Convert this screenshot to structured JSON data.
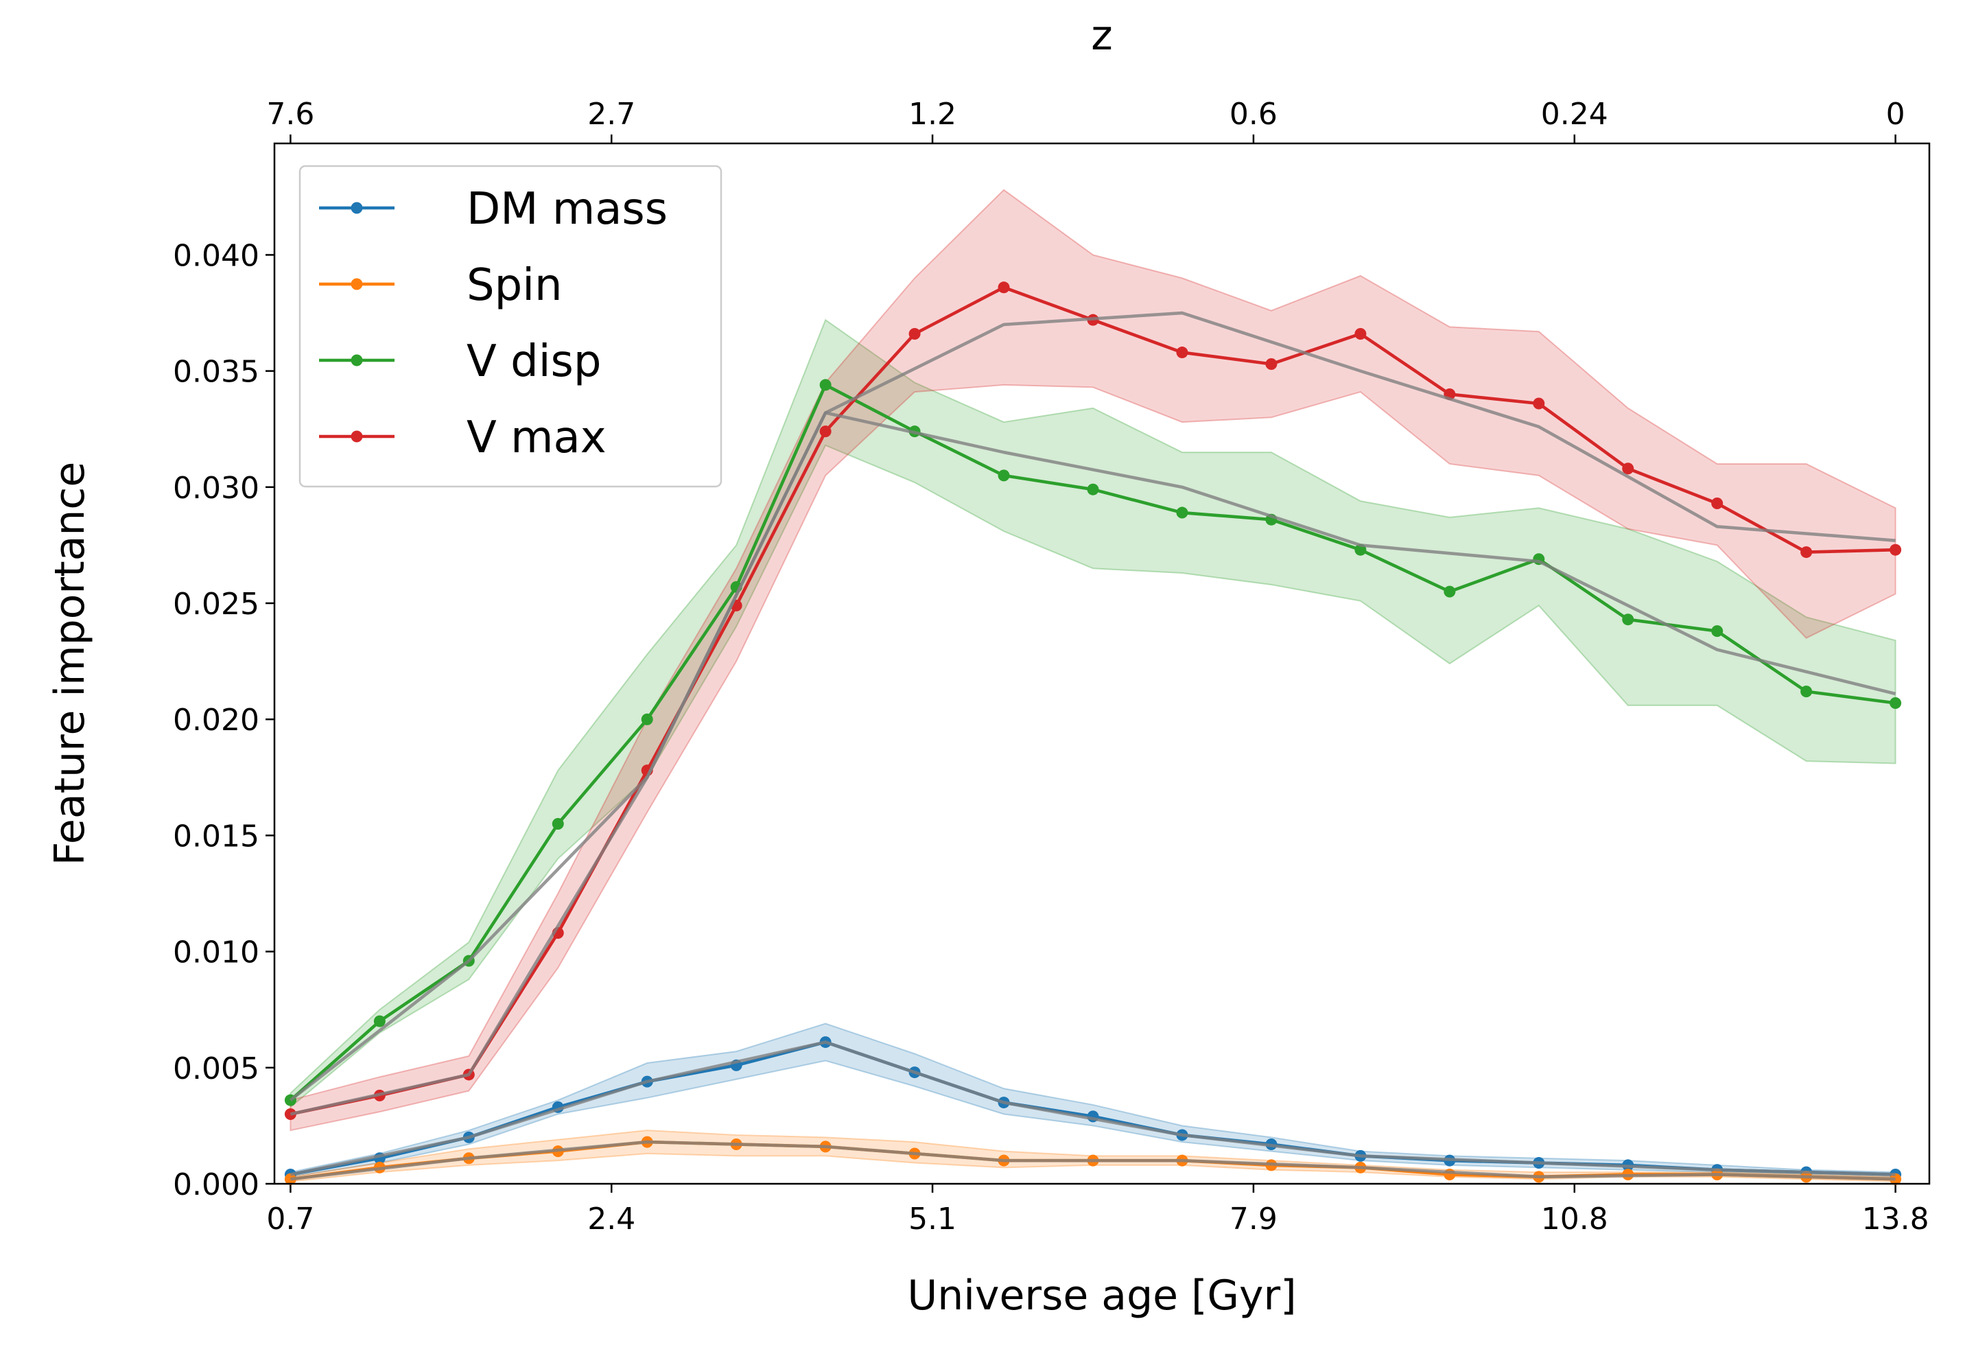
{
  "chart_data": {
    "type": "line",
    "xlabel": "Universe age [Gyr]",
    "x2label": "z",
    "ylabel": "Feature importance",
    "x": [
      0,
      1,
      2,
      3,
      4,
      5,
      6,
      7,
      8,
      9,
      10,
      11,
      12,
      13,
      14,
      15,
      16,
      17,
      18
    ],
    "xlim": [
      -0.18,
      18.38
    ],
    "xticks": [
      {
        "value": 0,
        "label": "0.7"
      },
      {
        "value": 3.6,
        "label": "2.4"
      },
      {
        "value": 7.2,
        "label": "5.1"
      },
      {
        "value": 10.8,
        "label": "7.9"
      },
      {
        "value": 14.4,
        "label": "10.8"
      },
      {
        "value": 18,
        "label": "13.8"
      }
    ],
    "x2ticks": [
      {
        "value": 0,
        "label": "7.6"
      },
      {
        "value": 3.6,
        "label": "2.7"
      },
      {
        "value": 7.2,
        "label": "1.2"
      },
      {
        "value": 10.8,
        "label": "0.6"
      },
      {
        "value": 14.4,
        "label": "0.24"
      },
      {
        "value": 18,
        "label": "0"
      }
    ],
    "ylim": [
      0,
      0.0448
    ],
    "yticks": [
      {
        "value": 0,
        "label": "0.000"
      },
      {
        "value": 0.005,
        "label": "0.005"
      },
      {
        "value": 0.01,
        "label": "0.010"
      },
      {
        "value": 0.015,
        "label": "0.015"
      },
      {
        "value": 0.02,
        "label": "0.020"
      },
      {
        "value": 0.025,
        "label": "0.025"
      },
      {
        "value": 0.03,
        "label": "0.030"
      },
      {
        "value": 0.035,
        "label": "0.035"
      },
      {
        "value": 0.04,
        "label": "0.040"
      }
    ],
    "grid": false,
    "legend": "upper left",
    "series": [
      {
        "name": "DM mass",
        "color": "#1f77b4",
        "values": [
          0.0004,
          0.0011,
          0.002,
          0.0033,
          0.0044,
          0.0051,
          0.0061,
          0.0048,
          0.0035,
          0.0029,
          0.0021,
          0.0017,
          0.0012,
          0.001,
          0.0009,
          0.0008,
          0.0006,
          0.0005,
          0.0004
        ],
        "upper": [
          0.0005,
          0.0013,
          0.0023,
          0.0036,
          0.0052,
          0.0057,
          0.0069,
          0.0056,
          0.0041,
          0.0034,
          0.0025,
          0.002,
          0.0014,
          0.0012,
          0.0011,
          0.001,
          0.0008,
          0.0006,
          0.0005
        ],
        "lower": [
          0.0003,
          0.0009,
          0.0017,
          0.003,
          0.0037,
          0.0045,
          0.0053,
          0.0042,
          0.003,
          0.0025,
          0.0018,
          0.0014,
          0.001,
          0.0008,
          0.0007,
          0.0006,
          0.0005,
          0.0004,
          0.0003
        ]
      },
      {
        "name": "Spin",
        "color": "#ff7f0e",
        "values": [
          0.0002,
          0.0007,
          0.0011,
          0.0014,
          0.0018,
          0.0017,
          0.0016,
          0.0013,
          0.001,
          0.001,
          0.001,
          0.0008,
          0.0007,
          0.0004,
          0.0003,
          0.0004,
          0.0004,
          0.0003,
          0.0002
        ],
        "upper": [
          0.0003,
          0.0009,
          0.0015,
          0.0019,
          0.0023,
          0.0021,
          0.002,
          0.0018,
          0.0014,
          0.0012,
          0.0012,
          0.001,
          0.0008,
          0.0006,
          0.0005,
          0.0005,
          0.0005,
          0.0004,
          0.0003
        ],
        "lower": [
          0.0001,
          0.0005,
          0.0008,
          0.001,
          0.0013,
          0.0012,
          0.0012,
          0.0009,
          0.0007,
          0.0008,
          0.0008,
          0.0006,
          0.0005,
          0.0003,
          0.0002,
          0.0003,
          0.0003,
          0.0002,
          0.0001
        ]
      },
      {
        "name": "V disp",
        "color": "#2ca02c",
        "values": [
          0.0036,
          0.007,
          0.0096,
          0.0155,
          0.02,
          0.0257,
          0.0344,
          0.0324,
          0.0305,
          0.0299,
          0.0289,
          0.0286,
          0.0273,
          0.0255,
          0.0269,
          0.0243,
          0.0238,
          0.0212,
          0.0207
        ],
        "upper": [
          0.0039,
          0.0075,
          0.0104,
          0.0178,
          0.0228,
          0.0275,
          0.0372,
          0.0345,
          0.0328,
          0.0334,
          0.0315,
          0.0315,
          0.0294,
          0.0287,
          0.0291,
          0.0282,
          0.0268,
          0.0244,
          0.0234
        ],
        "lower": [
          0.0033,
          0.0065,
          0.0088,
          0.014,
          0.0175,
          0.024,
          0.0318,
          0.0302,
          0.0281,
          0.0265,
          0.0263,
          0.0258,
          0.0251,
          0.0224,
          0.0249,
          0.0206,
          0.0206,
          0.0182,
          0.0181
        ]
      },
      {
        "name": "V max",
        "color": "#d62728",
        "values": [
          0.003,
          0.0038,
          0.0047,
          0.0108,
          0.0178,
          0.0249,
          0.0324,
          0.0366,
          0.0386,
          0.0372,
          0.0358,
          0.0353,
          0.0366,
          0.034,
          0.0336,
          0.0308,
          0.0293,
          0.0272,
          0.0273
        ],
        "upper": [
          0.0036,
          0.0046,
          0.0055,
          0.0125,
          0.02,
          0.0265,
          0.0345,
          0.039,
          0.0428,
          0.04,
          0.039,
          0.0376,
          0.0391,
          0.0369,
          0.0367,
          0.0334,
          0.031,
          0.031,
          0.0291
        ],
        "lower": [
          0.0023,
          0.0031,
          0.004,
          0.0093,
          0.016,
          0.0225,
          0.0305,
          0.0341,
          0.0344,
          0.0343,
          0.0328,
          0.033,
          0.0341,
          0.031,
          0.0305,
          0.0282,
          0.0275,
          0.0235,
          0.0254
        ]
      }
    ],
    "fit_color": "#7f7f7f",
    "fits": [
      {
        "x": [
          0,
          2,
          4,
          6,
          8,
          10,
          12,
          14,
          16,
          18
        ],
        "values": [
          0.0004,
          0.002,
          0.0044,
          0.0061,
          0.0035,
          0.0021,
          0.0012,
          0.0009,
          0.0006,
          0.0004
        ]
      },
      {
        "x": [
          0,
          2,
          4,
          6,
          8,
          10,
          12,
          14,
          16,
          18
        ],
        "values": [
          0.0002,
          0.0011,
          0.0018,
          0.0016,
          0.001,
          0.001,
          0.0007,
          0.0003,
          0.0004,
          0.0002
        ]
      },
      {
        "x": [
          0,
          2,
          4,
          6,
          8,
          10,
          12,
          14,
          16,
          18
        ],
        "values": [
          0.0036,
          0.0096,
          0.0175,
          0.0332,
          0.0315,
          0.03,
          0.0275,
          0.0268,
          0.023,
          0.0211
        ]
      },
      {
        "x": [
          0,
          2,
          4,
          6,
          8,
          10,
          12,
          14,
          16,
          18
        ],
        "values": [
          0.003,
          0.0047,
          0.0175,
          0.0332,
          0.037,
          0.0375,
          0.035,
          0.0326,
          0.0283,
          0.0277
        ]
      }
    ]
  }
}
